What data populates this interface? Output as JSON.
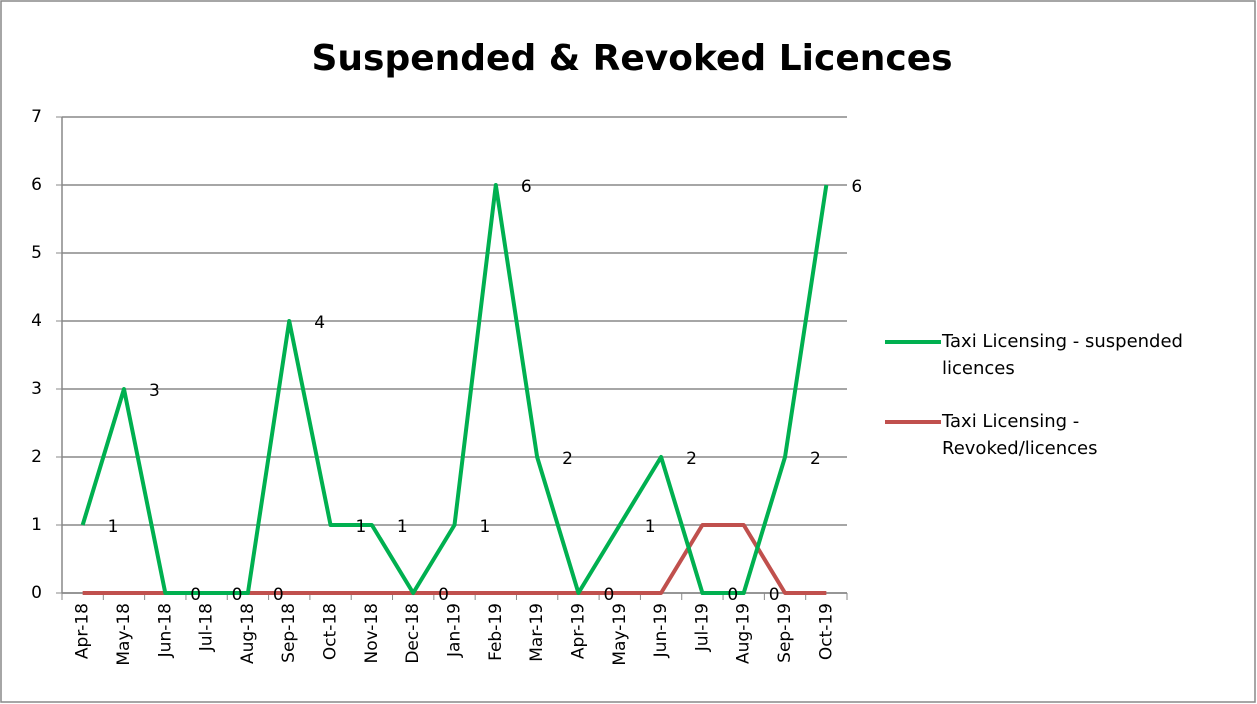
{
  "chart_data": {
    "type": "line",
    "title": "Suspended & Revoked Licences",
    "categories": [
      "Apr-18",
      "May-18",
      "Jun-18",
      "Jul-18",
      "Aug-18",
      "Sep-18",
      "Oct-18",
      "Nov-18",
      "Dec-18",
      "Jan-19",
      "Feb-19",
      "Mar-19",
      "Apr-19",
      "May-19",
      "Jun-19",
      "Jul-19",
      "Aug-19",
      "Sep-19",
      "Oct-19"
    ],
    "series": [
      {
        "name": "Taxi Licensing - suspended licences",
        "color": "#00b050",
        "values": [
          1,
          3,
          0,
          0,
          0,
          4,
          1,
          1,
          0,
          1,
          6,
          2,
          0,
          1,
          2,
          0,
          0,
          2,
          6
        ],
        "data_labels": true
      },
      {
        "name": "Taxi Licensing - Revoked/licences",
        "color": "#c0504d",
        "values": [
          0,
          0,
          0,
          0,
          0,
          0,
          0,
          0,
          0,
          0,
          0,
          0,
          0,
          0,
          0,
          1,
          1,
          0,
          0
        ],
        "data_labels": false
      }
    ],
    "ylim": [
      0,
      7
    ],
    "yticks": [
      0,
      1,
      2,
      3,
      4,
      5,
      6,
      7
    ],
    "grid": true,
    "legend": "right"
  }
}
